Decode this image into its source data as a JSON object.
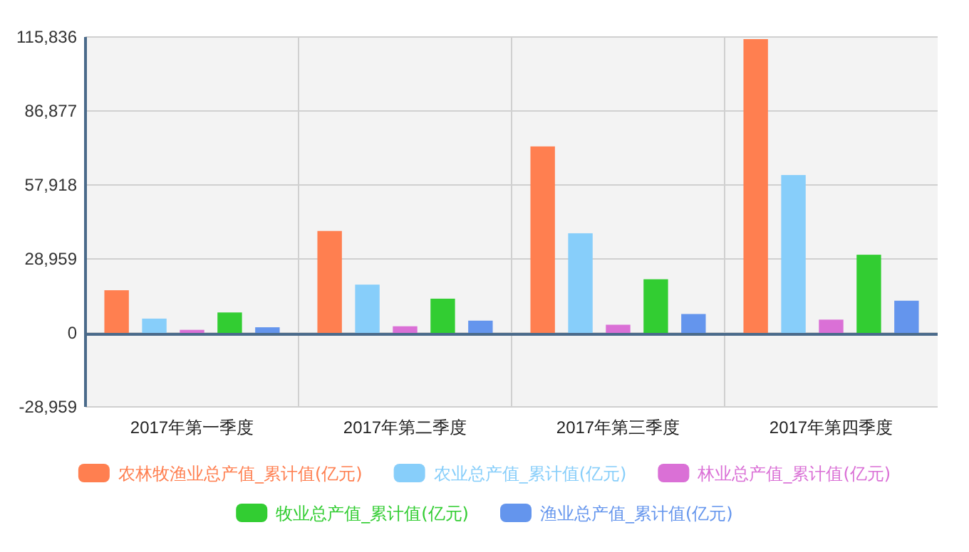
{
  "chart_data": {
    "type": "bar",
    "categories": [
      "2017年第一季度",
      "2017年第二季度",
      "2017年第三季度",
      "2017年第四季度"
    ],
    "series": [
      {
        "name": "农林牧渔业总产值_累计值(亿元)",
        "color": "#ff7f50",
        "values": [
          16700,
          39900,
          73000,
          115000
        ]
      },
      {
        "name": "农业总产值_累计值(亿元)",
        "color": "#87cefa",
        "values": [
          5600,
          18900,
          39000,
          61800
        ]
      },
      {
        "name": "林业总产值_累计值(亿元)",
        "color": "#da70d6",
        "values": [
          1200,
          2600,
          3200,
          5200
        ]
      },
      {
        "name": "牧业总产值_累计值(亿元)",
        "color": "#32cd32",
        "values": [
          8000,
          13400,
          21000,
          30600
        ]
      },
      {
        "name": "渔业总产值_累计值(亿元)",
        "color": "#6495ed",
        "values": [
          2200,
          4800,
          7400,
          12600
        ]
      }
    ],
    "ylim": [
      -28959,
      115836
    ],
    "yticks": [
      {
        "value": -28959,
        "label": "-28,959"
      },
      0,
      {
        "value": 28959,
        "label": "28,959"
      },
      {
        "value": 57918,
        "label": "57,918"
      },
      {
        "value": 86877,
        "label": "86,877"
      },
      {
        "value": 115836,
        "label": "115,836"
      }
    ],
    "ref_lines": [
      {
        "axis": "y",
        "value": 0,
        "color": "#4a6a8a"
      }
    ],
    "grid": true,
    "legend": "bottom"
  }
}
